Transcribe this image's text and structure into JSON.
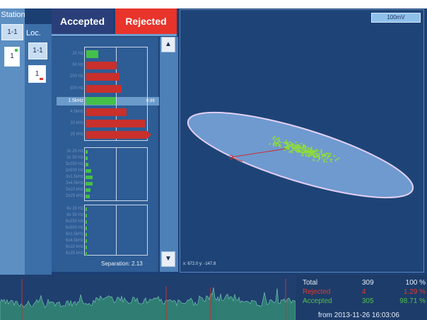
{
  "station": {
    "title": "Station",
    "items": [
      {
        "label": "1-1"
      },
      {
        "label": "1"
      }
    ],
    "loc_title": "Loc.",
    "loc_items": [
      {
        "label": "1-1"
      },
      {
        "label": "1"
      }
    ]
  },
  "tabs": {
    "accepted": "Accepted",
    "rejected": "Rejected"
  },
  "bars": {
    "groups": [
      {
        "labels": [
          "25 Hz",
          "50 Hz",
          "200 Hz",
          "500 Hz",
          "1.5kHz",
          "4.5kHz",
          "10 kHz",
          "25 kHz"
        ]
      },
      {
        "labels": [
          "3x 25 Hz",
          "3x 50 Hz",
          "3x250 Hz",
          "3x500 Hz",
          "3x1.5kHz",
          "3x4.5kHz",
          "3x10 kHz",
          "3x25 kHz"
        ]
      },
      {
        "labels": [
          "6x 25 Hz",
          "6x 50 Hz",
          "6x250 Hz",
          "6x500 Hz",
          "6x1.5kHz",
          "6x4.5kHz",
          "6x10 kHz",
          "6x25 kHz"
        ]
      }
    ],
    "highlight_label": "1.5kHz",
    "highlight_value": "0.99",
    "separation": "Separation: 2.13"
  },
  "scroll": {
    "up": "▲",
    "down": "▼"
  },
  "plot": {
    "scale_button": "100mV",
    "coords": "x: 672.0 y: -147.8"
  },
  "stats": {
    "rows": [
      {
        "name": "Total",
        "count": "309",
        "pct": "100 %",
        "color": "#e6eef8"
      },
      {
        "name": "Rejected",
        "count": "4",
        "pct": "1.29 %",
        "color": "#e0392f"
      },
      {
        "name": "Accepted",
        "count": "305",
        "pct": "98.71 %",
        "color": "#53c04d"
      }
    ],
    "from": "from  2013-11-26  16:03:06"
  },
  "colors": {
    "accepted": "#44c04a",
    "rejected": "#c9302c",
    "background": "#1c3f73"
  }
}
